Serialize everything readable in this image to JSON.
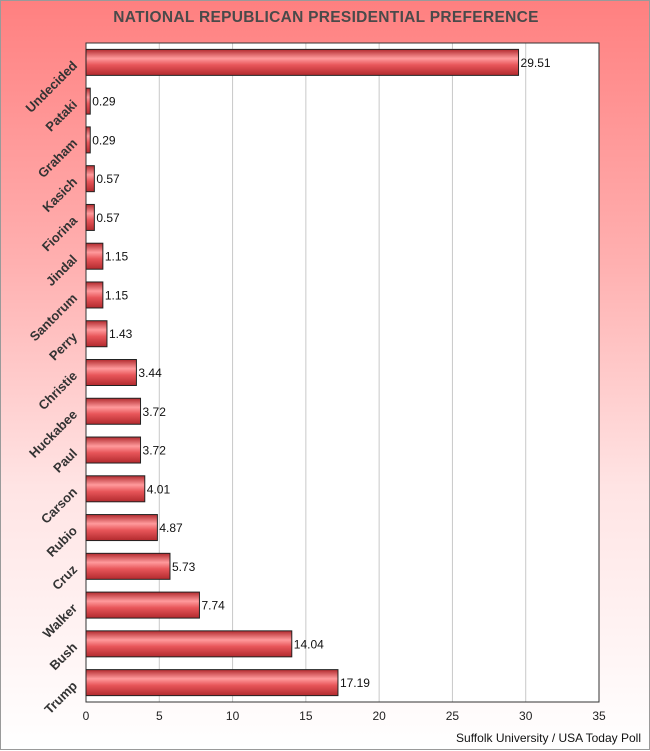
{
  "chart_data": {
    "type": "bar",
    "orientation": "horizontal",
    "title": "NATIONAL REPUBLICAN  PRESIDENTIAL PREFERENCE",
    "source": "Suffolk University / USA Today Poll",
    "categories": [
      "Undecided",
      "Pataki",
      "Graham",
      "Kasich",
      "Fiorina",
      "Jindal",
      "Santorum",
      "Perry",
      "Christie",
      "Huckabee",
      "Paul",
      "Carson",
      "Rubio",
      "Cruz",
      "Walker",
      "Bush",
      "Trump"
    ],
    "values": [
      29.51,
      0.29,
      0.29,
      0.57,
      0.57,
      1.15,
      1.15,
      1.43,
      3.44,
      3.72,
      3.72,
      4.01,
      4.87,
      5.73,
      7.74,
      14.04,
      17.19
    ],
    "value_labels": [
      "29.51",
      "0.29",
      "0.29",
      "0.57",
      "0.57",
      "1.15",
      "1.15",
      "1.43",
      "3.44",
      "3.72",
      "3.72",
      "4.01",
      "4.87",
      "5.73",
      "7.74",
      "14.04",
      "17.19"
    ],
    "xlim": [
      0,
      35
    ],
    "x_ticks": [
      0,
      5,
      10,
      15,
      20,
      25,
      30,
      35
    ],
    "x_tick_labels": [
      "0",
      "5",
      "10",
      "15",
      "20",
      "25",
      "30",
      "35"
    ],
    "xlabel": "",
    "ylabel": "",
    "grid": "vertical",
    "legend": "none",
    "colors": {
      "bar_fill": "#e8565a",
      "bar_highlight": "#ff9a9c",
      "bar_dark": "#b22a2e",
      "bar_border": "#222222",
      "plot_bg": "#ffffff",
      "grid": "#c8c8c8",
      "bg_top": "#ff8080",
      "bg_bottom": "#ffffff"
    }
  }
}
